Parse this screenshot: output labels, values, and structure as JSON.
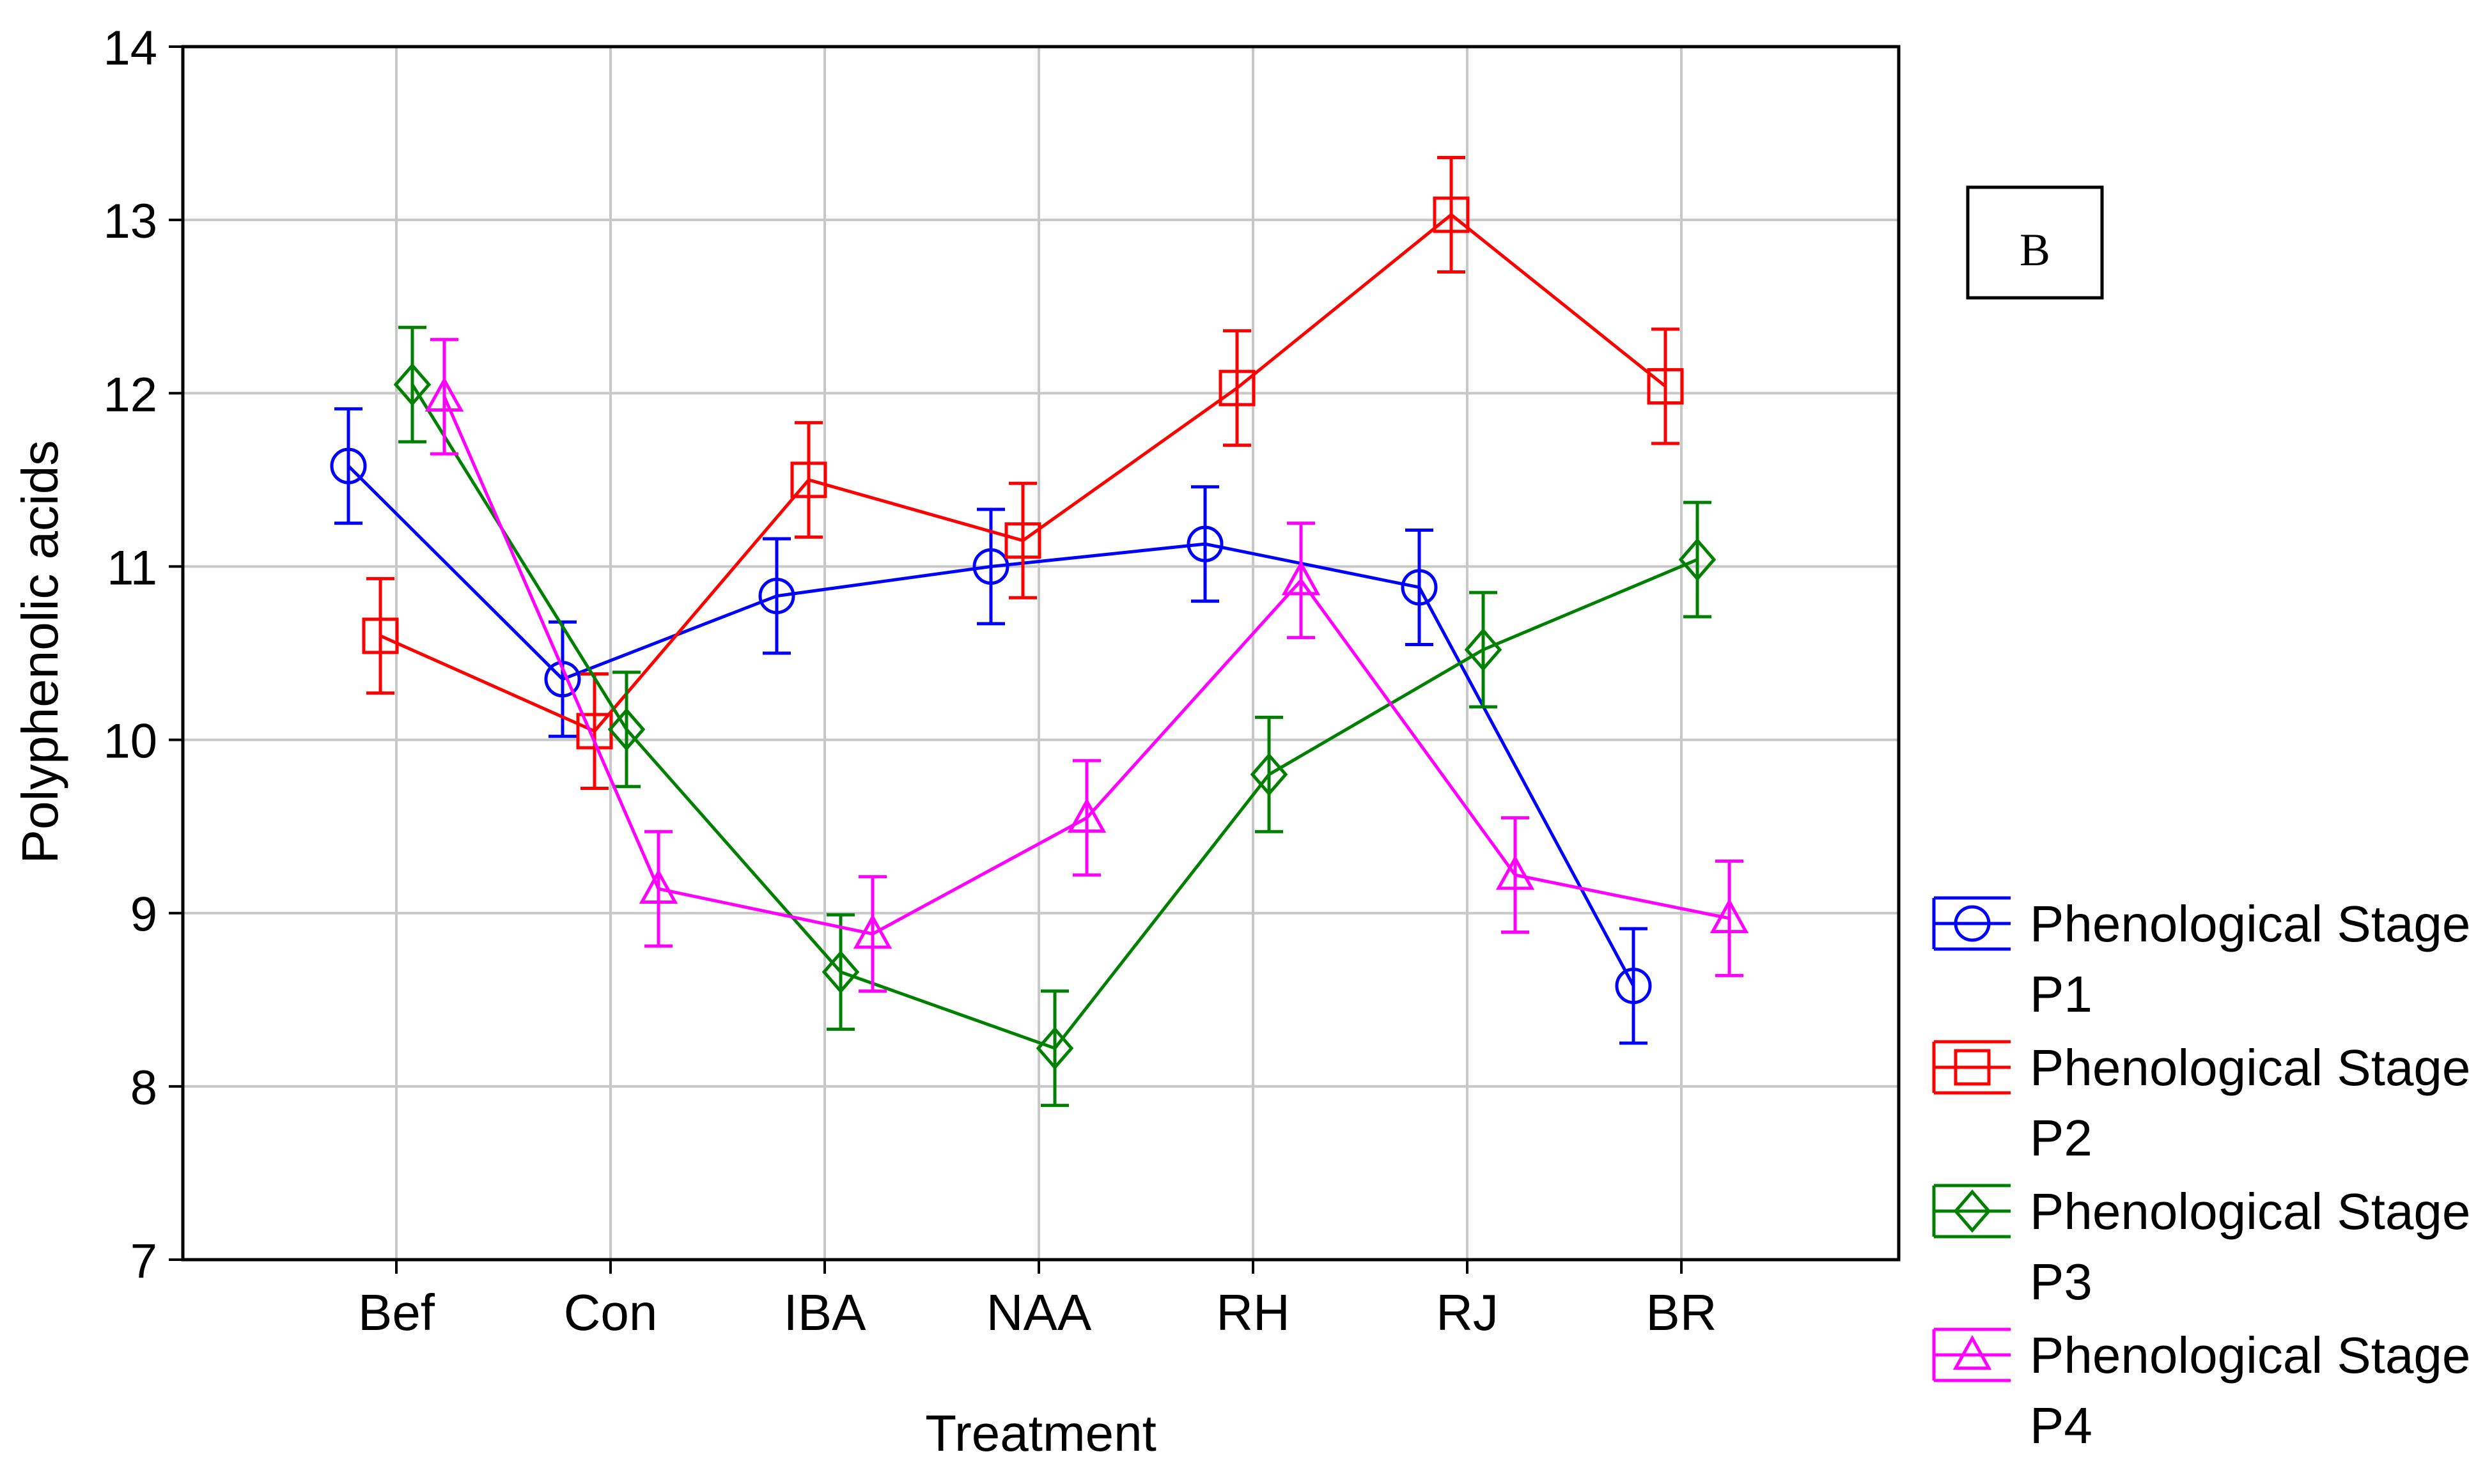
{
  "chart_data": {
    "type": "line",
    "title": "",
    "xlabel": "Treatment",
    "ylabel": "Polyphenolic acids",
    "panel_label": "B",
    "categories": [
      "Bef",
      "Con",
      "IBA",
      "NAA",
      "RH",
      "RJ",
      "BR"
    ],
    "ylim": [
      7,
      14
    ],
    "yticks": [
      7,
      8,
      9,
      10,
      11,
      12,
      13,
      14
    ],
    "grid": true,
    "legend_position": "right",
    "error_bar_halfwidth": 0.33,
    "series": [
      {
        "name": "Phenological Stage P1",
        "legend_lines": [
          "Phenological Stage",
          "P1"
        ],
        "color": "#0000ff",
        "marker": "circle",
        "values": [
          11.58,
          10.35,
          10.83,
          11.0,
          11.13,
          10.88,
          8.58
        ]
      },
      {
        "name": "Phenological Stage P2",
        "legend_lines": [
          "Phenological Stage",
          "P2"
        ],
        "color": "#ff0000",
        "marker": "square",
        "values": [
          10.6,
          10.05,
          11.5,
          11.15,
          12.03,
          13.03,
          12.04
        ]
      },
      {
        "name": "Phenological Stage P3",
        "legend_lines": [
          "Phenological Stage",
          "P3"
        ],
        "color": "#008000",
        "marker": "diamond",
        "values": [
          12.05,
          10.06,
          8.66,
          8.22,
          9.8,
          10.52,
          11.04
        ]
      },
      {
        "name": "Phenological Stage P4",
        "legend_lines": [
          "Phenological Stage",
          "P4"
        ],
        "color": "#ff00ff",
        "marker": "triangle",
        "values": [
          11.98,
          9.14,
          8.88,
          9.55,
          10.92,
          9.22,
          8.97
        ]
      }
    ]
  }
}
